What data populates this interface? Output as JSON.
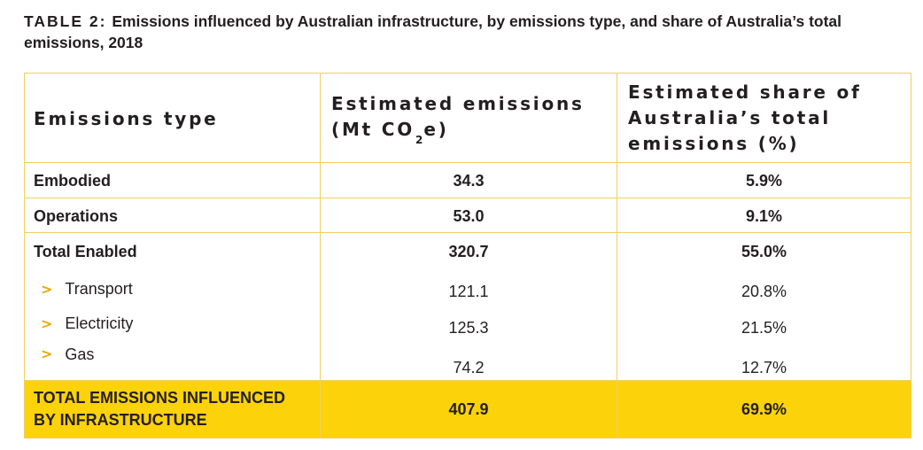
{
  "caption": {
    "label": "TABLE 2:",
    "text": "Emissions influenced by Australian infrastructure, by emissions type, and share of Australia’s total emissions, 2018"
  },
  "header": {
    "col1": "Emissions type",
    "col2_a": "Estimated emissions",
    "col2_b": "(Mt CO",
    "col2_sub": "2",
    "col2_c": "e)",
    "col3_a": "Estimated share of",
    "col3_b": "Australia’s total",
    "col3_c": "emissions (%)"
  },
  "rows": [
    {
      "type": "Embodied",
      "emissions": "34.3",
      "share": "5.9%"
    },
    {
      "type": "Operations",
      "emissions": "53.0",
      "share": "9.1%"
    },
    {
      "type": "Total Enabled",
      "emissions": "320.7",
      "share": "55.0%"
    }
  ],
  "subrows": [
    {
      "type": "Transport",
      "emissions": "121.1",
      "share": "20.8%"
    },
    {
      "type": "Electricity",
      "emissions": "125.3",
      "share": "21.5%"
    },
    {
      "type": "Gas",
      "emissions": "74.2",
      "share": "12.7%"
    }
  ],
  "bullet": ">",
  "total": {
    "type": "TOTAL EMISSIONS INFLUENCED BY INFRASTRUCTURE",
    "emissions": "407.9",
    "share": "69.9%"
  },
  "colors": {
    "accent": "#fcd20a",
    "chevron": "#e8a900",
    "border": "#f0d060"
  }
}
